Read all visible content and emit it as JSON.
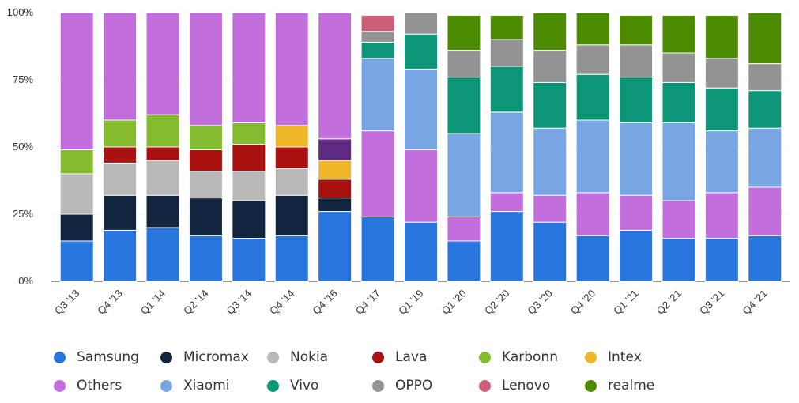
{
  "chart_data": {
    "type": "bar",
    "stacked": true,
    "grid": true,
    "legend_position": "bottom",
    "ylim": [
      0,
      100
    ],
    "y_ticks": [
      "0%",
      "25%",
      "50%",
      "75%",
      "100%"
    ],
    "categories": [
      "Q3 '13",
      "Q4 '13",
      "Q1 '14",
      "Q2 '14",
      "Q3 '14",
      "Q4 '14",
      "Q4 '16",
      "Q4 '17",
      "Q1 '19",
      "Q1 '20",
      "Q2 '20",
      "Q3 '20",
      "Q4 '20",
      "Q1 '21",
      "Q2 '21",
      "Q3 '21",
      "Q4 '21"
    ],
    "series": [
      {
        "name": "Samsung",
        "color": "#2876dd",
        "values": [
          15,
          19,
          20,
          17,
          16,
          17,
          26,
          24,
          22,
          15,
          26,
          22,
          17,
          19,
          16,
          16,
          17
        ]
      },
      {
        "name": "Micromax",
        "color": "#11263e",
        "values": [
          10,
          13,
          12,
          14,
          14,
          15,
          5,
          0,
          0,
          0,
          0,
          0,
          0,
          0,
          0,
          0,
          0
        ]
      },
      {
        "name": "Nokia",
        "color": "#b9b9b9",
        "values": [
          15,
          12,
          13,
          10,
          11,
          10,
          0,
          0,
          0,
          0,
          0,
          0,
          0,
          0,
          0,
          0,
          0
        ]
      },
      {
        "name": "Lava",
        "color": "#a91010",
        "values": [
          0,
          6,
          5,
          8,
          10,
          8,
          7,
          0,
          0,
          0,
          0,
          0,
          0,
          0,
          0,
          0,
          0
        ]
      },
      {
        "name": "Karbonn",
        "color": "#85bb2f",
        "values": [
          9,
          10,
          12,
          9,
          8,
          0,
          0,
          0,
          0,
          0,
          0,
          0,
          0,
          0,
          0,
          0,
          0
        ]
      },
      {
        "name": "Intex",
        "color": "#f0b629",
        "values": [
          0,
          0,
          0,
          0,
          0,
          8,
          7,
          0,
          0,
          0,
          0,
          0,
          0,
          0,
          0,
          0,
          0
        ]
      },
      {
        "name": "Others",
        "color": "#c26fdd",
        "values": [
          51,
          40,
          38,
          42,
          41,
          42,
          0,
          32,
          27,
          9,
          7,
          10,
          16,
          13,
          14,
          17,
          18
        ]
      },
      {
        "name": "",
        "color": "#5e2a82",
        "values": [
          0,
          0,
          0,
          0,
          0,
          0,
          8,
          0,
          0,
          0,
          0,
          0,
          0,
          0,
          0,
          0,
          0
        ]
      },
      {
        "name": "",
        "color": "#c26fdd",
        "values": [
          0,
          0,
          0,
          0,
          0,
          0,
          47,
          0,
          0,
          0,
          0,
          0,
          0,
          0,
          0,
          0,
          0
        ]
      },
      {
        "name": "Xiaomi",
        "color": "#78a6e3",
        "values": [
          0,
          0,
          0,
          0,
          0,
          0,
          0,
          27,
          30,
          31,
          30,
          25,
          27,
          27,
          29,
          23,
          22
        ]
      },
      {
        "name": "Vivo",
        "color": "#0c9677",
        "values": [
          0,
          0,
          0,
          0,
          0,
          0,
          0,
          6,
          13,
          21,
          17,
          17,
          17,
          17,
          15,
          16,
          14
        ]
      },
      {
        "name": "OPPO",
        "color": "#939393",
        "values": [
          0,
          0,
          0,
          0,
          0,
          0,
          0,
          4,
          8,
          10,
          10,
          12,
          11,
          12,
          11,
          11,
          10
        ]
      },
      {
        "name": "Lenovo",
        "color": "#cc5e77",
        "values": [
          0,
          0,
          0,
          0,
          0,
          0,
          0,
          6,
          0,
          0,
          0,
          0,
          0,
          0,
          0,
          0,
          0
        ]
      },
      {
        "name": "realme",
        "color": "#4c8b00",
        "values": [
          0,
          0,
          0,
          0,
          0,
          0,
          0,
          0,
          0,
          13,
          9,
          14,
          12,
          11,
          14,
          16,
          19
        ]
      }
    ]
  },
  "legend": [
    {
      "label": "Samsung",
      "color": "#2876dd"
    },
    {
      "label": "Micromax",
      "color": "#11263e"
    },
    {
      "label": "Nokia",
      "color": "#b9b9b9"
    },
    {
      "label": "Lava",
      "color": "#a91010"
    },
    {
      "label": "Karbonn",
      "color": "#85bb2f"
    },
    {
      "label": "Intex",
      "color": "#f0b629"
    },
    {
      "label": "Others",
      "color": "#c26fdd"
    },
    {
      "label": "Xiaomi",
      "color": "#78a6e3"
    },
    {
      "label": "Vivo",
      "color": "#0c9677"
    },
    {
      "label": "OPPO",
      "color": "#939393"
    },
    {
      "label": "Lenovo",
      "color": "#cc5e77"
    },
    {
      "label": "realme",
      "color": "#4c8b00"
    }
  ]
}
